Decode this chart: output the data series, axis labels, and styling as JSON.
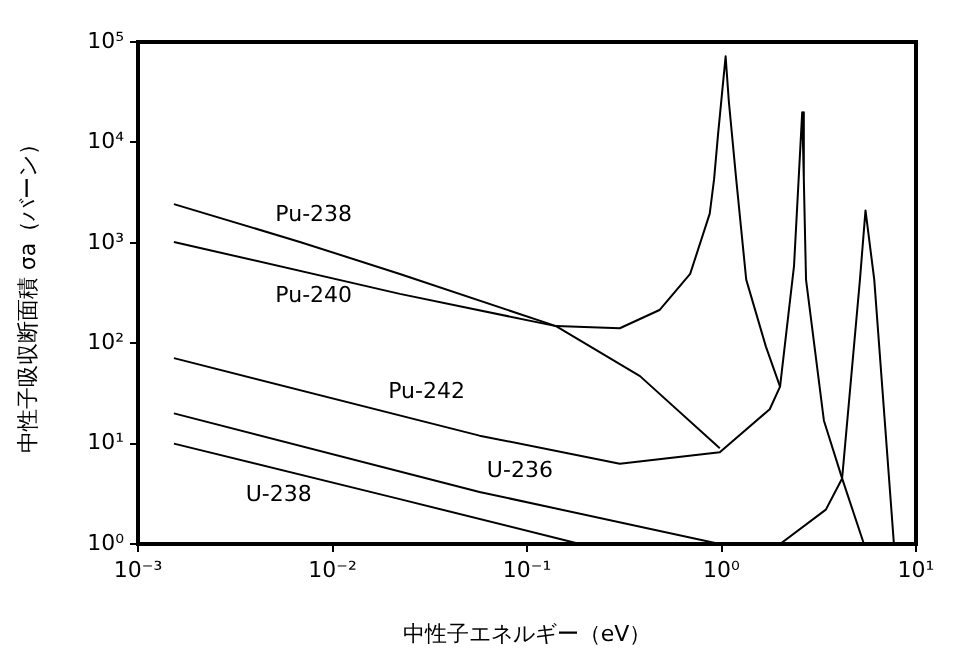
{
  "chart_data": {
    "type": "line",
    "xlabel": "中性子エネルギー（eV）",
    "ylabel": "中性子吸収断面積 σa（バーン）",
    "log": "xy",
    "xlim": [
      0.001,
      10
    ],
    "ylim": [
      1,
      100000
    ],
    "xticks": [
      {
        "value": 0.001,
        "label": "10⁻³"
      },
      {
        "value": 0.01,
        "label": "10⁻²"
      },
      {
        "value": 0.1,
        "label": "10⁻¹"
      },
      {
        "value": 1,
        "label": "10⁰"
      },
      {
        "value": 10,
        "label": "10¹"
      }
    ],
    "yticks": [
      {
        "value": 1,
        "label": "10⁰"
      },
      {
        "value": 10,
        "label": "10¹"
      },
      {
        "value": 100,
        "label": "10²"
      },
      {
        "value": 1000,
        "label": "10³"
      },
      {
        "value": 10000,
        "label": "10⁴"
      },
      {
        "value": 100000,
        "label": "10⁵"
      }
    ],
    "grid": false,
    "legend": false,
    "marker": "none",
    "line_style": "solid",
    "series": [
      {
        "name": "Pu-238",
        "color": "#000000",
        "x": [
          0.00153,
          0.0068,
          0.0222,
          0.141,
          0.381,
          0.98
        ],
        "values": [
          2430,
          1020,
          489,
          148,
          47,
          9
        ]
      },
      {
        "name": "Pu-240",
        "color": "#000000",
        "x": [
          0.00153,
          0.0222,
          0.141,
          0.3,
          0.48,
          0.69,
          0.87,
          0.916,
          0.96,
          1.05,
          1.09,
          1.19,
          1.34,
          1.69,
          2.0
        ],
        "values": [
          1020,
          310,
          148,
          141,
          214,
          490,
          1950,
          4300,
          12000,
          72000,
          26000,
          4300,
          430,
          93,
          37
        ]
      },
      {
        "name": "Pu-242",
        "color": "#000000",
        "x": [
          0.00153,
          0.057,
          0.3,
          0.98,
          1.77,
          2.0,
          2.36,
          2.6,
          2.65,
          2.72,
          3.36,
          4.17,
          5.4
        ],
        "values": [
          71,
          12,
          6.3,
          8.2,
          22,
          37,
          590,
          20000,
          4300,
          430,
          17,
          4.5,
          1
        ]
      },
      {
        "name": "U-236",
        "color": "#000000",
        "x": [
          0.00153,
          0.057,
          0.98,
          1.5,
          2.0,
          3.44,
          4.17,
          5.15,
          5.5,
          6.1,
          7.7
        ],
        "values": [
          20,
          3.3,
          1,
          null,
          1,
          2.2,
          4.5,
          430,
          2100,
          430,
          1
        ]
      },
      {
        "name": "U-238",
        "color": "#000000",
        "x": [
          0.00153,
          0.0222,
          0.187
        ],
        "values": [
          10,
          2.8,
          1
        ]
      }
    ]
  }
}
